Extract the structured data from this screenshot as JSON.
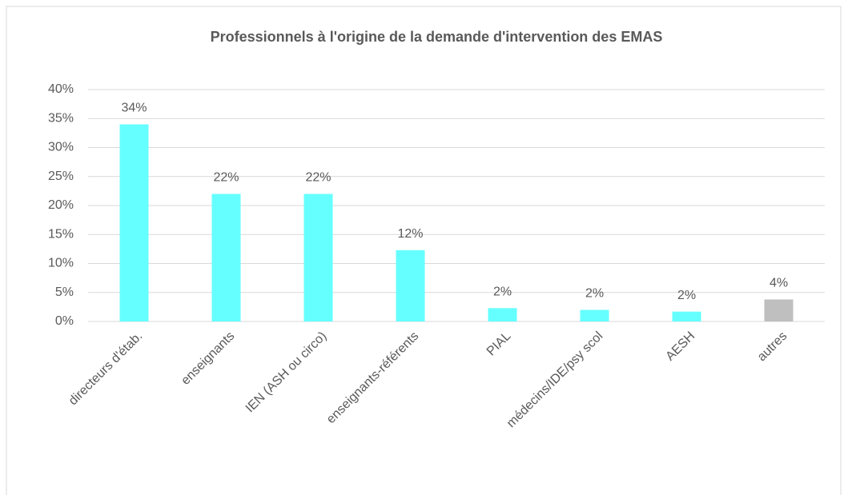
{
  "chart_data": {
    "type": "bar",
    "title": "Professionnels à l'origine de la demande d'intervention des EMAS",
    "categories": [
      "directeurs d'étab.",
      "enseignants",
      "IEN (ASH ou circo)",
      "enseignants-référents",
      "PIAL",
      "médecins/IDE/psy scol",
      "AESH",
      "autres"
    ],
    "values": [
      34,
      22,
      22,
      12.3,
      2.3,
      2.0,
      1.7,
      3.8
    ],
    "value_labels": [
      "34%",
      "22%",
      "22%",
      "12%",
      "2%",
      "2%",
      "2%",
      "4%"
    ],
    "colors": [
      "#66ffff",
      "#66ffff",
      "#66ffff",
      "#66ffff",
      "#66ffff",
      "#66ffff",
      "#66ffff",
      "#bfbfbf"
    ],
    "ylim": [
      0,
      40
    ],
    "yticks": [
      {
        "value": 0,
        "label": "0%"
      },
      {
        "value": 5,
        "label": "5%"
      },
      {
        "value": 10,
        "label": "10%"
      },
      {
        "value": 15,
        "label": "15%"
      },
      {
        "value": 20,
        "label": "20%"
      },
      {
        "value": 25,
        "label": "25%"
      },
      {
        "value": 30,
        "label": "30%"
      },
      {
        "value": 35,
        "label": "35%"
      },
      {
        "value": 40,
        "label": "40%"
      }
    ],
    "grid": true
  }
}
